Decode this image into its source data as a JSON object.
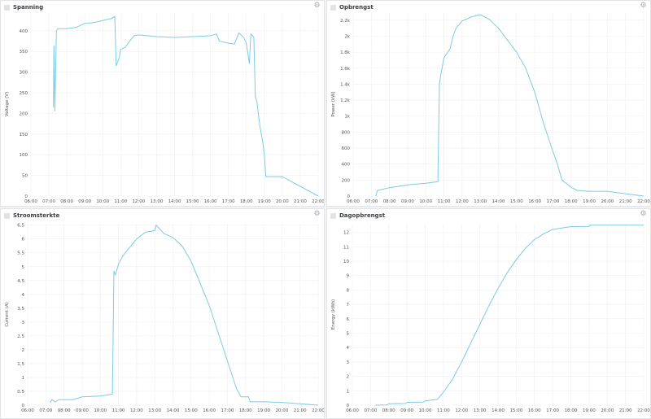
{
  "theme": {
    "line_color": "#7ecbe2",
    "grid_color": "#eeeff2",
    "background": "#f2f3f6"
  },
  "chart_data": [
    {
      "type": "line",
      "title": "Spanning",
      "ylabel": "Voltage (V)",
      "ylim": [
        0,
        445
      ],
      "yticks": [
        0,
        50,
        100,
        150,
        200,
        250,
        300,
        350,
        400
      ],
      "ytick_labels": [
        "0",
        "50",
        "100",
        "150",
        "200",
        "250",
        "300",
        "350",
        "400"
      ],
      "xticks": [
        "06:00",
        "07:00",
        "08:00",
        "09:00",
        "10:00",
        "11:00",
        "12:00",
        "13:00",
        "14:00",
        "15:00",
        "16:00",
        "17:00",
        "18:00",
        "19:00",
        "20:00",
        "21:00",
        "22:00"
      ],
      "grid": true,
      "points": [
        [
          "07:15",
          215
        ],
        [
          "07:17",
          365
        ],
        [
          "07:20",
          205
        ],
        [
          "07:25",
          400
        ],
        [
          "07:30",
          405
        ],
        [
          "08:00",
          405
        ],
        [
          "08:30",
          408
        ],
        [
          "09:00",
          418
        ],
        [
          "09:30",
          420
        ],
        [
          "10:00",
          425
        ],
        [
          "10:30",
          430
        ],
        [
          "10:40",
          435
        ],
        [
          "10:45",
          315
        ],
        [
          "10:55",
          335
        ],
        [
          "11:00",
          355
        ],
        [
          "11:15",
          360
        ],
        [
          "11:30",
          375
        ],
        [
          "11:45",
          388
        ],
        [
          "12:00",
          390
        ],
        [
          "13:00",
          386
        ],
        [
          "14:00",
          384
        ],
        [
          "15:00",
          386
        ],
        [
          "16:00",
          388
        ],
        [
          "16:20",
          392
        ],
        [
          "16:30",
          375
        ],
        [
          "17:00",
          370
        ],
        [
          "17:20",
          368
        ],
        [
          "17:35",
          395
        ],
        [
          "17:50",
          385
        ],
        [
          "18:00",
          370
        ],
        [
          "18:10",
          320
        ],
        [
          "18:15",
          392
        ],
        [
          "18:25",
          385
        ],
        [
          "18:30",
          240
        ],
        [
          "18:35",
          230
        ],
        [
          "18:45",
          170
        ],
        [
          "18:55",
          130
        ],
        [
          "19:00",
          100
        ],
        [
          "19:05",
          47
        ],
        [
          "20:00",
          47
        ],
        [
          "22:00",
          0
        ]
      ]
    },
    {
      "type": "line",
      "title": "Opbrengst",
      "ylabel": "Power (kW)",
      "ylim": [
        0,
        2300
      ],
      "yticks": [
        0,
        200,
        400,
        600,
        800,
        1000,
        1200,
        1400,
        1600,
        1800,
        2000,
        2200
      ],
      "ytick_labels": [
        "0",
        "200",
        "400",
        "600",
        "800",
        "1k",
        "1.2k",
        "1.4k",
        "1.6k",
        "1.8k",
        "2k",
        "2.2k"
      ],
      "xticks": [
        "06:00",
        "07:00",
        "08:00",
        "09:00",
        "10:00",
        "11:00",
        "12:00",
        "13:00",
        "14:00",
        "15:00",
        "16:00",
        "17:00",
        "18:00",
        "19:00",
        "20:00",
        "21:00",
        "22:00"
      ],
      "grid": true,
      "points": [
        [
          "07:15",
          0
        ],
        [
          "07:20",
          70
        ],
        [
          "08:00",
          105
        ],
        [
          "09:00",
          140
        ],
        [
          "10:00",
          160
        ],
        [
          "10:40",
          180
        ],
        [
          "10:45",
          1400
        ],
        [
          "10:50",
          1520
        ],
        [
          "11:00",
          1730
        ],
        [
          "11:20",
          1840
        ],
        [
          "11:30",
          2000
        ],
        [
          "11:40",
          2100
        ],
        [
          "12:00",
          2190
        ],
        [
          "12:30",
          2240
        ],
        [
          "13:00",
          2270
        ],
        [
          "13:30",
          2210
        ],
        [
          "14:00",
          2100
        ],
        [
          "14:30",
          1950
        ],
        [
          "15:00",
          1800
        ],
        [
          "15:30",
          1600
        ],
        [
          "16:00",
          1300
        ],
        [
          "16:30",
          900
        ],
        [
          "17:00",
          560
        ],
        [
          "17:15",
          400
        ],
        [
          "17:30",
          200
        ],
        [
          "18:00",
          110
        ],
        [
          "18:20",
          70
        ],
        [
          "19:00",
          60
        ],
        [
          "20:00",
          60
        ],
        [
          "21:00",
          30
        ],
        [
          "22:00",
          0
        ]
      ]
    },
    {
      "type": "line",
      "title": "Stroomsterkte",
      "ylabel": "Current (A)",
      "ylim": [
        0,
        6.55
      ],
      "yticks": [
        0,
        0.5,
        1,
        1.5,
        2,
        2.5,
        3,
        3.5,
        4,
        4.5,
        5,
        5.5,
        6,
        6.5
      ],
      "ytick_labels": [
        "0",
        "0.5",
        "1",
        "1.5",
        "2",
        "2.5",
        "3",
        "3.5",
        "4",
        "4.5",
        "5",
        "5.5",
        "6",
        "6.5"
      ],
      "xticks": [
        "06:00",
        "07:00",
        "08:00",
        "09:00",
        "10:00",
        "11:00",
        "12:00",
        "13:00",
        "14:00",
        "15:00",
        "16:00",
        "17:00",
        "18:00",
        "19:00",
        "20:00",
        "21:00",
        "22:00"
      ],
      "grid": true,
      "points": [
        [
          "07:15",
          0.1
        ],
        [
          "07:20",
          0.2
        ],
        [
          "07:30",
          0.12
        ],
        [
          "07:45",
          0.2
        ],
        [
          "08:30",
          0.2
        ],
        [
          "09:00",
          0.3
        ],
        [
          "10:00",
          0.33
        ],
        [
          "10:40",
          0.4
        ],
        [
          "10:45",
          4.85
        ],
        [
          "10:50",
          4.7
        ],
        [
          "11:00",
          5.1
        ],
        [
          "11:15",
          5.4
        ],
        [
          "11:30",
          5.6
        ],
        [
          "12:00",
          6.0
        ],
        [
          "12:30",
          6.25
        ],
        [
          "13:00",
          6.3
        ],
        [
          "13:05",
          6.5
        ],
        [
          "13:30",
          6.2
        ],
        [
          "14:00",
          6.05
        ],
        [
          "14:30",
          5.75
        ],
        [
          "15:00",
          5.2
        ],
        [
          "15:30",
          4.4
        ],
        [
          "16:00",
          3.6
        ],
        [
          "16:30",
          2.6
        ],
        [
          "17:00",
          1.6
        ],
        [
          "17:30",
          0.6
        ],
        [
          "17:45",
          0.3
        ],
        [
          "18:10",
          0.3
        ],
        [
          "18:15",
          0.12
        ],
        [
          "19:00",
          0.12
        ],
        [
          "20:00",
          0.1
        ],
        [
          "21:00",
          0.05
        ],
        [
          "22:00",
          0
        ]
      ]
    },
    {
      "type": "line",
      "title": "Dagopbrengst",
      "ylabel": "Energy (kWh)",
      "ylim": [
        0,
        12.6
      ],
      "yticks": [
        0,
        1,
        2,
        3,
        4,
        5,
        6,
        7,
        8,
        9,
        10,
        11,
        12
      ],
      "ytick_labels": [
        "0",
        "1",
        "2",
        "3",
        "4",
        "5",
        "6",
        "7",
        "8",
        "9",
        "10",
        "11",
        "12"
      ],
      "xticks": [
        "06:00",
        "07:00",
        "08:00",
        "09:00",
        "10:00",
        "11:00",
        "12:00",
        "13:00",
        "14:00",
        "15:00",
        "16:00",
        "17:00",
        "18:00",
        "19:00",
        "20:00",
        "21:00",
        "22:00"
      ],
      "grid": true,
      "points": [
        [
          "07:15",
          0
        ],
        [
          "07:55",
          0.02
        ],
        [
          "08:00",
          0.1
        ],
        [
          "08:55",
          0.12
        ],
        [
          "09:00",
          0.2
        ],
        [
          "09:55",
          0.22
        ],
        [
          "10:00",
          0.3
        ],
        [
          "10:40",
          0.4
        ],
        [
          "11:00",
          0.9
        ],
        [
          "11:30",
          1.8
        ],
        [
          "12:00",
          3.0
        ],
        [
          "12:30",
          4.3
        ],
        [
          "13:00",
          5.6
        ],
        [
          "13:30",
          6.9
        ],
        [
          "14:00",
          8.1
        ],
        [
          "14:30",
          9.2
        ],
        [
          "15:00",
          10.1
        ],
        [
          "15:30",
          10.9
        ],
        [
          "16:00",
          11.5
        ],
        [
          "16:30",
          11.9
        ],
        [
          "17:00",
          12.2
        ],
        [
          "17:30",
          12.3
        ],
        [
          "18:00",
          12.4
        ],
        [
          "19:00",
          12.42
        ],
        [
          "19:02",
          12.5
        ],
        [
          "22:00",
          12.5
        ]
      ]
    }
  ]
}
